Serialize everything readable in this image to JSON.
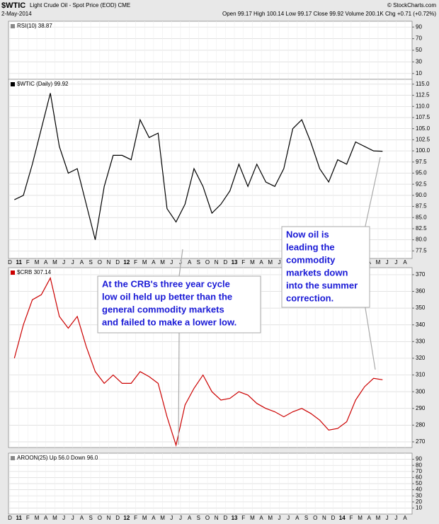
{
  "header": {
    "title": "$WTIC",
    "subtitle": "Light Crude Oil - Spot Price (EOD) CME",
    "date": "2-May-2014",
    "stats": "Open 99.17 High 100.14 Low 99.17 Close 99.92 Volume 200.1K Chg +0.71 (+0.72%)",
    "source": "© StockCharts.com"
  },
  "chart_data": [
    {
      "type": "line",
      "title": "RSI(10) 38.87",
      "ylim": [
        0,
        100
      ],
      "yticks": [
        90,
        70,
        50,
        30,
        10
      ],
      "grid": true
    },
    {
      "type": "line",
      "title": "$WTIC (Daily) 99.92",
      "ylim": [
        75.8,
        116.1
      ],
      "yticks": [
        {
          "value": 115,
          "label": "115.0"
        },
        112.5,
        {
          "value": 110,
          "label": "110.0"
        },
        107.5,
        {
          "value": 105,
          "label": "105.0"
        },
        102.5,
        {
          "value": 100,
          "label": "100.0"
        },
        97.5,
        {
          "value": 95,
          "label": "95.0"
        },
        92.5,
        {
          "value": 90,
          "label": "90.0"
        },
        87.5,
        {
          "value": 85,
          "label": "85.0"
        },
        82.5,
        {
          "value": 80,
          "label": "80.0"
        },
        77.5
      ],
      "grid": true,
      "categories": [
        "D",
        "11",
        "F",
        "M",
        "A",
        "M",
        "J",
        "J",
        "A",
        "S",
        "O",
        "N",
        "D",
        "12",
        "F",
        "M",
        "A",
        "M",
        "J",
        "J",
        "A",
        "S",
        "O",
        "N",
        "D",
        "13",
        "F",
        "M",
        "A",
        "M",
        "J",
        "J",
        "A",
        "S",
        "O",
        "N",
        "D",
        "14",
        "F",
        "M",
        "A",
        "M",
        "J",
        "J",
        "A"
      ],
      "series": [
        {
          "name": "$WTIC",
          "color": "#000000",
          "values": [
            89,
            90,
            97,
            105,
            113,
            101,
            95,
            96,
            88,
            80,
            92,
            99,
            99,
            98,
            107,
            103,
            104,
            87,
            84,
            88,
            96,
            92,
            86,
            88,
            91,
            97,
            92,
            97,
            93,
            92,
            96,
            105,
            107,
            102,
            96,
            93,
            98,
            97,
            102,
            101,
            100,
            99.92,
            null,
            null,
            null
          ]
        }
      ]
    },
    {
      "type": "line",
      "title": "$CRB 307.14",
      "ylim": [
        266.6,
        374.2
      ],
      "yticks": [
        370,
        360,
        350,
        340,
        330,
        320,
        310,
        300,
        290,
        280,
        270
      ],
      "grid": true,
      "series": [
        {
          "name": "$CRB",
          "color": "#cc0000",
          "values": [
            320,
            340,
            355,
            358,
            368,
            345,
            338,
            345,
            327,
            312,
            305,
            310,
            305,
            305,
            312,
            309,
            305,
            285,
            268,
            292,
            302,
            310,
            300,
            295,
            296,
            300,
            298,
            293,
            290,
            288,
            285,
            288,
            290,
            287,
            283,
            277,
            278,
            282,
            295,
            303,
            308,
            307.14,
            null,
            null,
            null
          ]
        }
      ]
    },
    {
      "type": "line",
      "title": "AROON(25) Up 56.0 Down 96.0",
      "ylim": [
        0,
        100
      ],
      "yticks": [
        90,
        80,
        70,
        60,
        50,
        40,
        30,
        20,
        10
      ],
      "grid": true,
      "categories": [
        "D",
        "11",
        "F",
        "M",
        "A",
        "M",
        "J",
        "J",
        "A",
        "S",
        "O",
        "N",
        "D",
        "12",
        "F",
        "M",
        "A",
        "M",
        "J",
        "J",
        "A",
        "S",
        "O",
        "N",
        "D",
        "13",
        "F",
        "M",
        "A",
        "M",
        "J",
        "J",
        "A",
        "S",
        "O",
        "N",
        "D",
        "14",
        "F",
        "M",
        "A",
        "M",
        "J",
        "J",
        "A"
      ]
    }
  ],
  "annotations": [
    {
      "lines": [
        "At the CRB's three year cycle",
        "low oil held up better than the",
        "general commodity markets",
        "and failed to make a lower low."
      ]
    },
    {
      "lines": [
        "Now oil is",
        "leading the",
        "commodity",
        "markets down",
        "into the summer",
        "correction."
      ]
    }
  ]
}
